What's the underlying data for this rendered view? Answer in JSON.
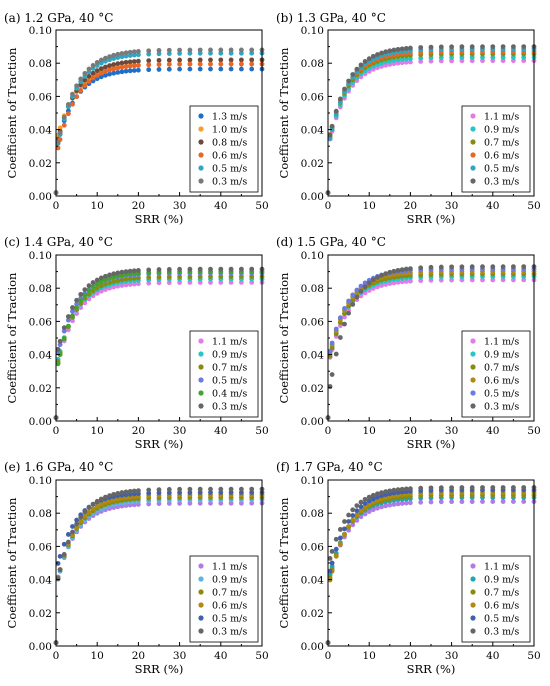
{
  "figure": {
    "panels": [
      {
        "id": "a",
        "title": "(a) 1.2 GPa, 40 °C"
      },
      {
        "id": "b",
        "title": "(b) 1.3 GPa, 40 °C"
      },
      {
        "id": "c",
        "title": "(c) 1.4 GPa, 40 °C"
      },
      {
        "id": "d",
        "title": "(d) 1.5 GPa, 40 °C"
      },
      {
        "id": "e",
        "title": "(e) 1.6 GPa, 40 °C"
      },
      {
        "id": "f",
        "title": "(f) 1.7 GPa, 40 °C"
      }
    ]
  },
  "chart_data": [
    {
      "type": "scatter",
      "title": "(a) 1.2 GPa, 40 °C",
      "xlabel": "SRR (%)",
      "ylabel": "Coefficient of Traction",
      "xlim": [
        0,
        50
      ],
      "ylim": [
        0,
        0.1
      ],
      "xticks": [
        "0",
        "10",
        "20",
        "30",
        "40",
        "50"
      ],
      "yticks": [
        "0.00",
        "0.02",
        "0.04",
        "0.06",
        "0.08",
        "0.10"
      ],
      "grid": false,
      "legend_position": "bottom-right",
      "series": [
        {
          "name": "1.3 m/s",
          "color": "#1f6fc6",
          "plateau": 0.0765,
          "start": 0.038
        },
        {
          "name": "1.0 m/s",
          "color": "#f2a02a",
          "plateau": 0.0795,
          "start": 0.041
        },
        {
          "name": "0.8 m/s",
          "color": "#6a4a3a",
          "plateau": 0.082,
          "start": 0.039
        },
        {
          "name": "0.6 m/s",
          "color": "#e8662a",
          "plateau": 0.0795,
          "start": 0.034
        },
        {
          "name": "0.5 m/s",
          "color": "#2fa6c4",
          "plateau": 0.086,
          "start": 0.037
        },
        {
          "name": "0.3 m/s",
          "color": "#7a7a7a",
          "plateau": 0.088,
          "start": 0.038
        }
      ]
    },
    {
      "type": "scatter",
      "title": "(b) 1.3 GPa, 40 °C",
      "xlabel": "SRR (%)",
      "ylabel": "Coefficient of Traction",
      "xlim": [
        0,
        50
      ],
      "ylim": [
        0,
        0.1
      ],
      "xticks": [
        "0",
        "10",
        "20",
        "30",
        "40",
        "50"
      ],
      "yticks": [
        "0.00",
        "0.02",
        "0.04",
        "0.06",
        "0.08",
        "0.10"
      ],
      "grid": false,
      "legend_position": "bottom-right",
      "series": [
        {
          "name": "1.1 m/s",
          "color": "#e07be8",
          "plateau": 0.0815,
          "start": 0.039
        },
        {
          "name": "0.9 m/s",
          "color": "#24c6c6",
          "plateau": 0.0835,
          "start": 0.04
        },
        {
          "name": "0.7 m/s",
          "color": "#8a8a10",
          "plateau": 0.0855,
          "start": 0.041
        },
        {
          "name": "0.6 m/s",
          "color": "#e8662a",
          "plateau": 0.087,
          "start": 0.042
        },
        {
          "name": "0.5 m/s",
          "color": "#2fa6c4",
          "plateau": 0.0885,
          "start": 0.04
        },
        {
          "name": "0.3 m/s",
          "color": "#666666",
          "plateau": 0.09,
          "start": 0.042
        }
      ]
    },
    {
      "type": "scatter",
      "title": "(c) 1.4 GPa, 40 °C",
      "xlabel": "SRR (%)",
      "ylabel": "Coefficient of Traction",
      "xlim": [
        0,
        50
      ],
      "ylim": [
        0,
        0.1
      ],
      "xticks": [
        "0",
        "10",
        "20",
        "30",
        "40",
        "50"
      ],
      "yticks": [
        "0.00",
        "0.02",
        "0.04",
        "0.06",
        "0.08",
        "0.10"
      ],
      "grid": false,
      "legend_position": "bottom-right",
      "series": [
        {
          "name": "1.1 m/s",
          "color": "#e07be8",
          "plateau": 0.0835,
          "start": 0.04
        },
        {
          "name": "0.9 m/s",
          "color": "#24c6c6",
          "plateau": 0.0855,
          "start": 0.042
        },
        {
          "name": "0.7 m/s",
          "color": "#8a8a10",
          "plateau": 0.087,
          "start": 0.041
        },
        {
          "name": "0.5 m/s",
          "color": "#6b7be0",
          "plateau": 0.089,
          "start": 0.046
        },
        {
          "name": "0.4 m/s",
          "color": "#3fa62a",
          "plateau": 0.09,
          "start": 0.04
        },
        {
          "name": "0.3 m/s",
          "color": "#666666",
          "plateau": 0.0915,
          "start": 0.048
        }
      ]
    },
    {
      "type": "scatter",
      "title": "(d) 1.5 GPa, 40 °C",
      "xlabel": "SRR (%)",
      "ylabel": "Coefficient of Traction",
      "xlim": [
        0,
        50
      ],
      "ylim": [
        0,
        0.1
      ],
      "xticks": [
        "0",
        "10",
        "20",
        "30",
        "40",
        "50"
      ],
      "yticks": [
        "0.00",
        "0.02",
        "0.04",
        "0.06",
        "0.08",
        "0.10"
      ],
      "grid": false,
      "legend_position": "bottom-right",
      "series": [
        {
          "name": "1.1 m/s",
          "color": "#e07be8",
          "plateau": 0.085,
          "start": 0.043
        },
        {
          "name": "0.9 m/s",
          "color": "#24c6c6",
          "plateau": 0.087,
          "start": 0.045
        },
        {
          "name": "0.7 m/s",
          "color": "#8a8a10",
          "plateau": 0.0885,
          "start": 0.044
        },
        {
          "name": "0.6 m/s",
          "color": "#b08a10",
          "plateau": 0.09,
          "start": 0.046
        },
        {
          "name": "0.5 m/s",
          "color": "#6b7be0",
          "plateau": 0.0915,
          "start": 0.047
        },
        {
          "name": "0.3 m/s",
          "color": "#666666",
          "plateau": 0.093,
          "start": 0.028
        }
      ]
    },
    {
      "type": "scatter",
      "title": "(e) 1.6 GPa, 40 °C",
      "xlabel": "SRR (%)",
      "ylabel": "Coefficient of Traction",
      "xlim": [
        0,
        50
      ],
      "ylim": [
        0,
        0.1
      ],
      "xticks": [
        "0",
        "10",
        "20",
        "30",
        "40",
        "50"
      ],
      "yticks": [
        "0.00",
        "0.02",
        "0.04",
        "0.06",
        "0.08",
        "0.10"
      ],
      "grid": false,
      "legend_position": "bottom-right",
      "series": [
        {
          "name": "1.1 m/s",
          "color": "#b07be8",
          "plateau": 0.086,
          "start": 0.046
        },
        {
          "name": "0.9 m/s",
          "color": "#5ab4e0",
          "plateau": 0.088,
          "start": 0.045
        },
        {
          "name": "0.7 m/s",
          "color": "#8a8a10",
          "plateau": 0.0895,
          "start": 0.046
        },
        {
          "name": "0.6 m/s",
          "color": "#b08a10",
          "plateau": 0.091,
          "start": 0.046
        },
        {
          "name": "0.5 m/s",
          "color": "#3f5fb0",
          "plateau": 0.0925,
          "start": 0.054
        },
        {
          "name": "0.3 m/s",
          "color": "#666666",
          "plateau": 0.0945,
          "start": 0.046
        }
      ]
    },
    {
      "type": "scatter",
      "title": "(f) 1.7 GPa, 40 °C",
      "xlabel": "SRR (%)",
      "ylabel": "Coefficient of Traction",
      "xlim": [
        0,
        50
      ],
      "ylim": [
        0,
        0.1
      ],
      "xticks": [
        "0",
        "10",
        "20",
        "30",
        "40",
        "50"
      ],
      "yticks": [
        "0.00",
        "0.02",
        "0.04",
        "0.06",
        "0.08",
        "0.10"
      ],
      "grid": false,
      "legend_position": "bottom-right",
      "series": [
        {
          "name": "1.1 m/s",
          "color": "#b07be8",
          "plateau": 0.087,
          "start": 0.047
        },
        {
          "name": "0.9 m/s",
          "color": "#24a6b0",
          "plateau": 0.0895,
          "start": 0.048
        },
        {
          "name": "0.7 m/s",
          "color": "#8a8a10",
          "plateau": 0.091,
          "start": 0.046
        },
        {
          "name": "0.6 m/s",
          "color": "#b08a10",
          "plateau": 0.0925,
          "start": 0.045
        },
        {
          "name": "0.5 m/s",
          "color": "#3f5fb0",
          "plateau": 0.094,
          "start": 0.05
        },
        {
          "name": "0.3 m/s",
          "color": "#666666",
          "plateau": 0.0955,
          "start": 0.057
        }
      ]
    }
  ]
}
